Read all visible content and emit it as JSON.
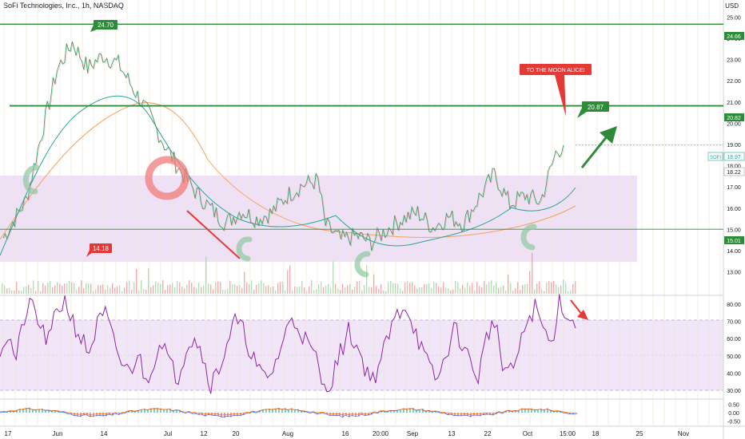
{
  "header": {
    "title": "SoFi Technologies, Inc., 1h, NASDAQ",
    "currency": "USD"
  },
  "colors": {
    "green": "#2e8b3a",
    "red": "#e53935",
    "rsi": "#8e24aa",
    "zone": "#e9d9f2",
    "ma_orange": "#f5a25d",
    "ma_teal": "#26a69a"
  },
  "chart_data": {
    "type": "line",
    "title": "SoFi Technologies, Inc., 1h, NASDAQ",
    "price_axis": {
      "ticks": [
        "25.00",
        "24.00",
        "23.00",
        "22.00",
        "21.00",
        "20.00",
        "19.00",
        "18.00",
        "17.00",
        "16.00",
        "15.00",
        "14.00",
        "13.00"
      ],
      "range": [
        12.5,
        25.5
      ]
    },
    "time_axis": {
      "ticks": [
        "17",
        "Jun",
        "14",
        "Jul",
        "12",
        "20",
        "Aug",
        "16",
        "20:00",
        "Sep",
        "13",
        "22",
        "Oct",
        "15:00",
        "18",
        "25",
        "Nov"
      ]
    },
    "horizontal_levels": [
      {
        "price": 24.66,
        "label": "24.66"
      },
      {
        "price": 20.82,
        "label": "20.82"
      },
      {
        "price": 15.01,
        "label": "15.01"
      }
    ],
    "current_price": {
      "symbol": "SOFI",
      "price": 18.97
    },
    "marker_price": 18.22,
    "price_labels": [
      {
        "text": "24.70",
        "price": 24.7
      },
      {
        "text": "14.18",
        "price": 14.18
      },
      {
        "text": "20.87",
        "price": 20.87
      }
    ],
    "annotation": "TO THE MOON ALICE!",
    "price_series": [
      {
        "x": 0,
        "y": 14.6
      },
      {
        "x": 3,
        "y": 16.4
      },
      {
        "x": 5,
        "y": 19.5
      },
      {
        "x": 7,
        "y": 22.5
      },
      {
        "x": 9,
        "y": 23.8
      },
      {
        "x": 11,
        "y": 22.6
      },
      {
        "x": 13,
        "y": 23.2
      },
      {
        "x": 15,
        "y": 22.8
      },
      {
        "x": 17,
        "y": 21.6
      },
      {
        "x": 19,
        "y": 20.4
      },
      {
        "x": 21,
        "y": 19.0
      },
      {
        "x": 23,
        "y": 17.8
      },
      {
        "x": 25,
        "y": 16.8
      },
      {
        "x": 27,
        "y": 16.0
      },
      {
        "x": 29,
        "y": 15.3
      },
      {
        "x": 31,
        "y": 15.9
      },
      {
        "x": 33,
        "y": 15.5
      },
      {
        "x": 35,
        "y": 15.8
      },
      {
        "x": 37,
        "y": 16.6
      },
      {
        "x": 39,
        "y": 17.1
      },
      {
        "x": 41,
        "y": 17.3
      },
      {
        "x": 42,
        "y": 15.2
      },
      {
        "x": 44,
        "y": 14.5
      },
      {
        "x": 46,
        "y": 14.7
      },
      {
        "x": 48,
        "y": 14.4
      },
      {
        "x": 50,
        "y": 15.0
      },
      {
        "x": 52,
        "y": 15.5
      },
      {
        "x": 54,
        "y": 15.8
      },
      {
        "x": 56,
        "y": 15.1
      },
      {
        "x": 58,
        "y": 15.6
      },
      {
        "x": 60,
        "y": 15.3
      },
      {
        "x": 62,
        "y": 16.5
      },
      {
        "x": 64,
        "y": 17.6
      },
      {
        "x": 66,
        "y": 16.2
      },
      {
        "x": 68,
        "y": 16.6
      },
      {
        "x": 70,
        "y": 16.3
      },
      {
        "x": 72,
        "y": 18.6
      },
      {
        "x": 73,
        "y": 18.97
      }
    ],
    "rsi": {
      "ticks": [
        "80.00",
        "70.00",
        "60.00",
        "50.00",
        "40.00",
        "30.00"
      ],
      "range": [
        25,
        85
      ],
      "overbought": 70,
      "oversold": 30,
      "series": [
        55,
        62,
        48,
        72,
        80,
        66,
        58,
        76,
        82,
        70,
        60,
        52,
        68,
        74,
        58,
        46,
        40,
        52,
        35,
        48,
        60,
        44,
        38,
        56,
        62,
        50,
        34,
        42,
        58,
        70,
        64,
        52,
        40,
        36,
        46,
        60,
        72,
        66,
        56,
        48,
        30,
        38,
        52,
        64,
        56,
        44,
        36,
        48,
        62,
        74,
        80,
        68,
        54,
        42,
        36,
        50,
        66,
        58,
        46,
        38,
        60,
        72,
        44,
        40,
        52,
        70,
        78,
        66,
        56,
        82,
        74,
        66
      ]
    },
    "macd": {
      "ticks": [
        "0.50",
        "0.00",
        "-0.50"
      ],
      "range": [
        -0.7,
        0.7
      ]
    }
  }
}
